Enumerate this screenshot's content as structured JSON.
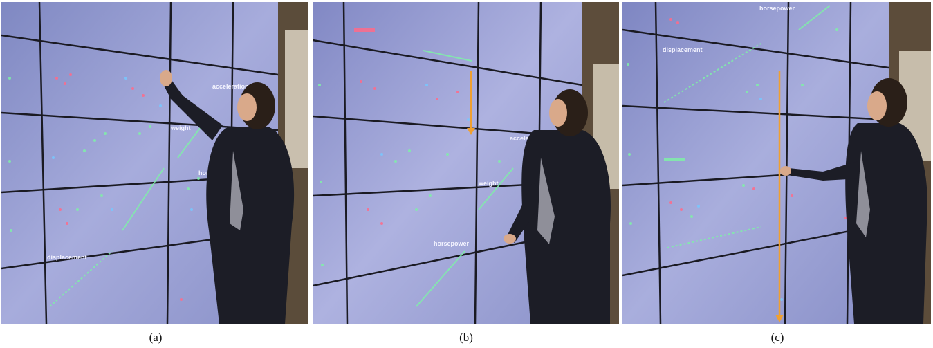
{
  "panels": [
    {
      "caption": "(a)",
      "labels": [
        "horsepower",
        "displacement",
        "weight",
        "acceleration"
      ],
      "arrow": false
    },
    {
      "caption": "(b)",
      "labels": [
        "horsepower",
        "weight",
        "acceleration"
      ],
      "arrow": true
    },
    {
      "caption": "(c)",
      "labels": [
        "displacement",
        "horsepower"
      ],
      "arrow": true
    }
  ],
  "colors": {
    "wall": "#8a92c8",
    "wall_light": "#b8bde6",
    "bezel": "#1a1a22",
    "arrow": "#f0a030",
    "person_dark": "#1c1d26",
    "skin": "#d9a98a",
    "hair": "#2a1f18"
  }
}
